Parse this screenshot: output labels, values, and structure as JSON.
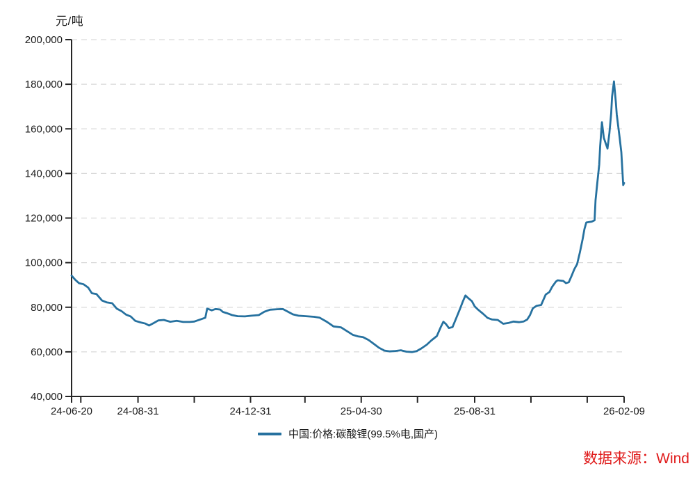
{
  "unit_label": "元/吨",
  "legend": {
    "label": "中国:价格:碳酸锂(99.5%电,国产)",
    "swatch_color": "#26719f"
  },
  "source": {
    "text": "数据来源：Wind",
    "color": "#e01c1c"
  },
  "colors": {
    "background": "#ffffff",
    "axis": "#262626",
    "tick_text": "#1a1a1a",
    "grid": "#d9d9d9",
    "line": "#26719f"
  },
  "chart_data": {
    "type": "line",
    "title": "",
    "ylabel": "元/吨",
    "xlabel": "",
    "grid": {
      "horizontal": true,
      "style": "dashed"
    },
    "legend_position": "bottom-center",
    "y_axis": {
      "min": 40000,
      "max": 200000,
      "step": 20000
    },
    "x_axis": {
      "start": "24-06-20",
      "end": "26-02-09",
      "labeled_ticks": [
        "24-06-20",
        "24-08-31",
        "24-12-31",
        "25-04-30",
        "25-08-31",
        "26-02-09"
      ],
      "minor_ticks": [
        "24-06-30",
        "24-10-31",
        "25-02-28",
        "25-06-30",
        "25-10-31",
        "25-12-31"
      ]
    },
    "series": [
      {
        "name": "中国:价格:碳酸锂(99.5%电,国产)",
        "color": "#26719f",
        "points": [
          [
            "24-06-20",
            94200
          ],
          [
            "24-06-24",
            92300
          ],
          [
            "24-06-28",
            90800
          ],
          [
            "24-07-03",
            90300
          ],
          [
            "24-07-08",
            88800
          ],
          [
            "24-07-12",
            86300
          ],
          [
            "24-07-17",
            85900
          ],
          [
            "24-07-23",
            83000
          ],
          [
            "24-07-28",
            82200
          ],
          [
            "24-08-03",
            81800
          ],
          [
            "24-08-08",
            79400
          ],
          [
            "24-08-13",
            78300
          ],
          [
            "24-08-18",
            76700
          ],
          [
            "24-08-23",
            75900
          ],
          [
            "24-08-28",
            73900
          ],
          [
            "24-09-03",
            73200
          ],
          [
            "24-09-08",
            72700
          ],
          [
            "24-09-12",
            71800
          ],
          [
            "24-09-17",
            72900
          ],
          [
            "24-09-22",
            74100
          ],
          [
            "24-09-28",
            74300
          ],
          [
            "24-10-05",
            73500
          ],
          [
            "24-10-12",
            73900
          ],
          [
            "24-10-19",
            73400
          ],
          [
            "24-10-26",
            73400
          ],
          [
            "24-10-31",
            73600
          ],
          [
            "24-11-08",
            74700
          ],
          [
            "24-11-12",
            75300
          ],
          [
            "24-11-14",
            79400
          ],
          [
            "24-11-19",
            78600
          ],
          [
            "24-11-23",
            79200
          ],
          [
            "24-11-28",
            79000
          ],
          [
            "24-12-01",
            77900
          ],
          [
            "24-12-05",
            77400
          ],
          [
            "24-12-11",
            76500
          ],
          [
            "24-12-17",
            76000
          ],
          [
            "24-12-25",
            75900
          ],
          [
            "25-01-01",
            76200
          ],
          [
            "25-01-09",
            76500
          ],
          [
            "25-01-15",
            78000
          ],
          [
            "25-01-21",
            78900
          ],
          [
            "25-01-29",
            79100
          ],
          [
            "25-02-04",
            79200
          ],
          [
            "25-02-10",
            77900
          ],
          [
            "25-02-15",
            76800
          ],
          [
            "25-02-21",
            76200
          ],
          [
            "25-03-01",
            76000
          ],
          [
            "25-03-10",
            75700
          ],
          [
            "25-03-16",
            75300
          ],
          [
            "25-03-24",
            73400
          ],
          [
            "25-03-31",
            71400
          ],
          [
            "25-04-08",
            71000
          ],
          [
            "25-04-15",
            69200
          ],
          [
            "25-04-21",
            67600
          ],
          [
            "25-04-27",
            66900
          ],
          [
            "25-05-02",
            66600
          ],
          [
            "25-05-08",
            65300
          ],
          [
            "25-05-13",
            63800
          ],
          [
            "25-05-19",
            61900
          ],
          [
            "25-05-25",
            60600
          ],
          [
            "25-05-31",
            60200
          ],
          [
            "25-06-06",
            60400
          ],
          [
            "25-06-12",
            60700
          ],
          [
            "25-06-18",
            60100
          ],
          [
            "25-06-24",
            59900
          ],
          [
            "25-06-29",
            60300
          ],
          [
            "25-07-04",
            61500
          ],
          [
            "25-07-10",
            63200
          ],
          [
            "25-07-15",
            65100
          ],
          [
            "25-07-21",
            67100
          ],
          [
            "25-07-25",
            70900
          ],
          [
            "25-07-28",
            73500
          ],
          [
            "25-07-31",
            72400
          ],
          [
            "25-08-03",
            70700
          ],
          [
            "25-08-07",
            71100
          ],
          [
            "25-08-11",
            75100
          ],
          [
            "25-08-15",
            79200
          ],
          [
            "25-08-18",
            82400
          ],
          [
            "25-08-21",
            85300
          ],
          [
            "25-08-24",
            84100
          ],
          [
            "25-08-28",
            82700
          ],
          [
            "25-08-31",
            80400
          ],
          [
            "25-09-04",
            78800
          ],
          [
            "25-09-09",
            77100
          ],
          [
            "25-09-14",
            75200
          ],
          [
            "25-09-19",
            74500
          ],
          [
            "25-09-25",
            74300
          ],
          [
            "25-10-01",
            72600
          ],
          [
            "25-10-07",
            73000
          ],
          [
            "25-10-12",
            73600
          ],
          [
            "25-10-18",
            73300
          ],
          [
            "25-10-23",
            73600
          ],
          [
            "25-10-27",
            74500
          ],
          [
            "25-10-30",
            76500
          ],
          [
            "25-11-02",
            79500
          ],
          [
            "25-11-06",
            80600
          ],
          [
            "25-11-11",
            81000
          ],
          [
            "25-11-16",
            85700
          ],
          [
            "25-11-20",
            86800
          ],
          [
            "25-11-23",
            89200
          ],
          [
            "25-11-27",
            91500
          ],
          [
            "25-11-29",
            92100
          ],
          [
            "25-12-05",
            91800
          ],
          [
            "25-12-08",
            90800
          ],
          [
            "25-12-11",
            91200
          ],
          [
            "25-12-14",
            94000
          ],
          [
            "25-12-17",
            97000
          ],
          [
            "25-12-20",
            99300
          ],
          [
            "25-12-23",
            104500
          ],
          [
            "25-12-26",
            110500
          ],
          [
            "25-12-28",
            115000
          ],
          [
            "25-12-30",
            118000
          ],
          [
            "26-01-05",
            118400
          ],
          [
            "26-01-08",
            119000
          ],
          [
            "26-01-09",
            128000
          ],
          [
            "26-01-11",
            136000
          ],
          [
            "26-01-13",
            144000
          ],
          [
            "26-01-14",
            152000
          ],
          [
            "26-01-15",
            157500
          ],
          [
            "26-01-16",
            163000
          ],
          [
            "26-01-18",
            156000
          ],
          [
            "26-01-20",
            153500
          ],
          [
            "26-01-22",
            151200
          ],
          [
            "26-01-24",
            158000
          ],
          [
            "26-01-26",
            167000
          ],
          [
            "26-01-27",
            174500
          ],
          [
            "26-01-29",
            181300
          ],
          [
            "26-01-31",
            172000
          ],
          [
            "26-02-01",
            166500
          ],
          [
            "26-02-03",
            160000
          ],
          [
            "26-02-04",
            156500
          ],
          [
            "26-02-06",
            149500
          ],
          [
            "26-02-07",
            142500
          ],
          [
            "26-02-08",
            134800
          ],
          [
            "26-02-09",
            135700
          ]
        ]
      }
    ]
  }
}
